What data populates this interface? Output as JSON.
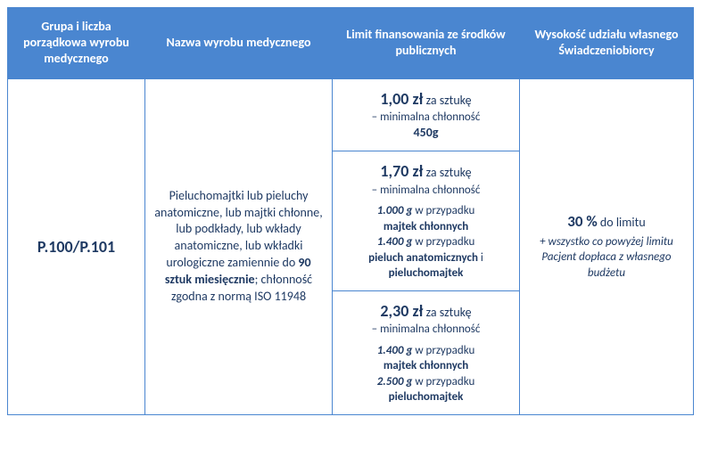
{
  "colors": {
    "header_bg": "#4a86d0",
    "header_text": "#ffffff",
    "border": "#4a86d0",
    "body_text": "#1f3a63",
    "background": "#ffffff"
  },
  "headers": {
    "col1": "Grupa i liczba porządkowa wyrobu medycznego",
    "col2": "Nazwa wyrobu medycznego",
    "col3": "Limit finansowania ze środków publicznych",
    "col4": "Wysokość udziału własnego Świadczeniobiorcy"
  },
  "row": {
    "code": "P.100/P.101",
    "product_line1": "Pieluchomajtki lub pieluchy anatomiczne, lub majtki chłonne, lub podkłady, lub wkłady anatomiczne, lub wkładki urologiczne zamiennie do",
    "product_bold": "90 sztuk miesięcznie",
    "product_line2": "; chłonność zgodna z normą ISO 11948",
    "tiers": [
      {
        "price": "1,00 zł",
        "per": "za sztukę",
        "sub1": "– minimalna chłonność",
        "bold1": "450g"
      },
      {
        "price": "1,70 zł",
        "per": "za sztukę",
        "sub1": "– minimalna chłonność",
        "d1_val": "1.000 g",
        "d1_txt": "w przypadku",
        "d1_bold": "majtek chłonnych",
        "d2_val": "1.400 g",
        "d2_txt": "w przypadku",
        "d2_bold1": "pieluch anatomicznych",
        "d2_and": "i",
        "d2_bold2": "pieluchomajtek"
      },
      {
        "price": "2,30 zł",
        "per": "za sztukę",
        "sub1": "– minimalna chłonność",
        "d1_val": "1.400 g",
        "d1_txt": "w przypadku",
        "d1_bold": "majtek chłonnych",
        "d2_val": "2.500 g",
        "d2_txt": "w przypadku",
        "d2_bold": "pieluchomajtek"
      }
    ],
    "share_pct": "30 %",
    "share_txt": "do limitu",
    "share_sub": "+ wszystko co powyżej limitu Pacjent dopłaca z własnego budżetu"
  }
}
